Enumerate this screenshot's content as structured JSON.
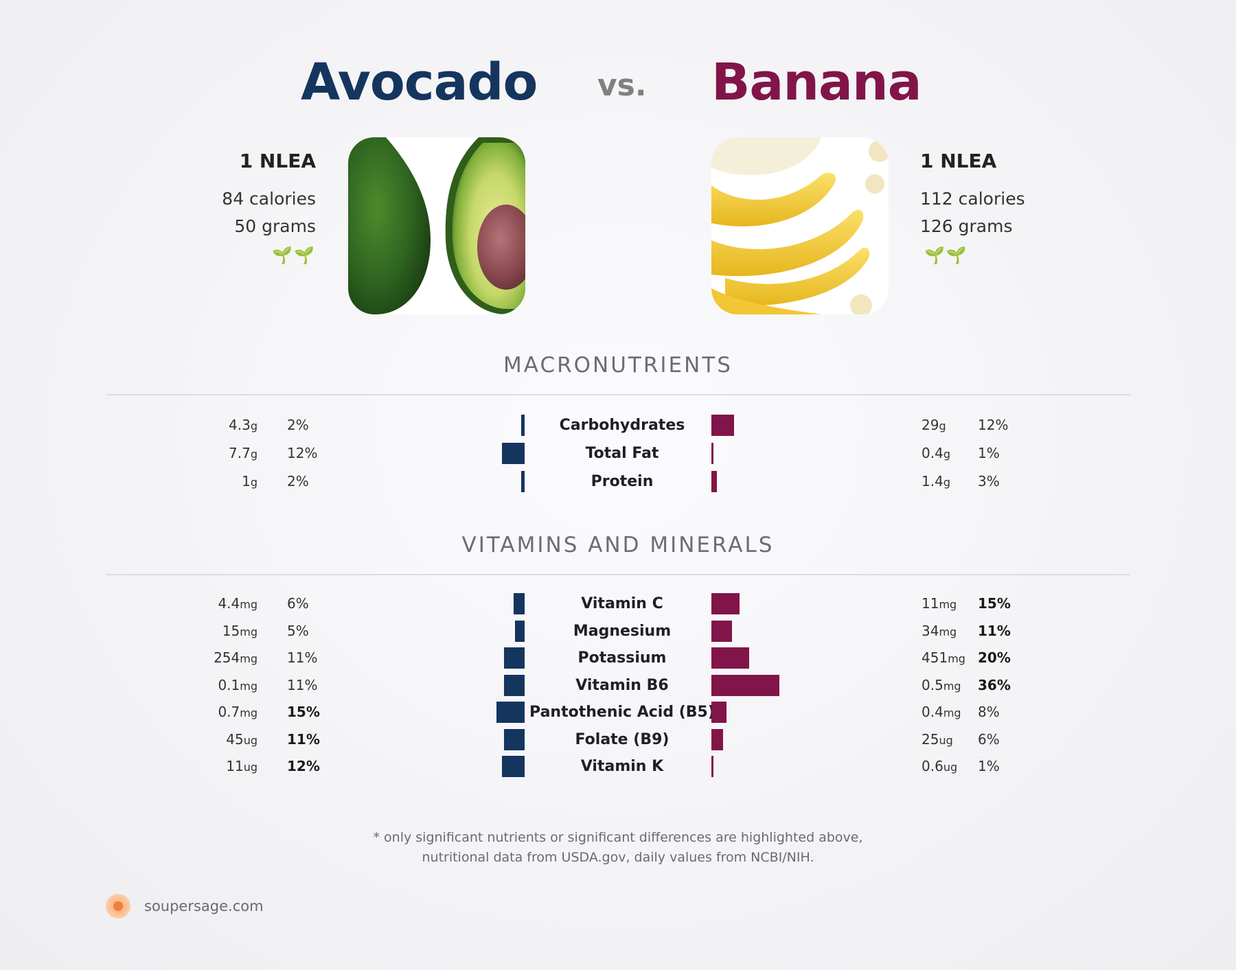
{
  "header": {
    "food_a": "Avocado",
    "vs": "vs.",
    "food_b": "Banana"
  },
  "food_a": {
    "serving": "1 NLEA",
    "calories": "84 calories",
    "grams": "50 grams",
    "badge": "🌱🌱",
    "color": "#14355e"
  },
  "food_b": {
    "serving": "1 NLEA",
    "calories": "112 calories",
    "grams": "126 grams",
    "badge": "🌱🌱",
    "color": "#81154a"
  },
  "sections": {
    "macros_title": "MACRONUTRIENTS",
    "vitamins_title": "VITAMINS AND MINERALS"
  },
  "chart_data": [
    {
      "type": "bar",
      "title": "MACRONUTRIENTS",
      "categories": [
        "Carbohydrates",
        "Total Fat",
        "Protein"
      ],
      "series": [
        {
          "name": "Avocado",
          "amounts": [
            "4.3",
            "7.7",
            "1"
          ],
          "units": [
            "g",
            "g",
            "g"
          ],
          "values": [
            2,
            12,
            2
          ],
          "percent_labels": [
            "2%",
            "12%",
            "2%"
          ],
          "bold": [
            false,
            false,
            false
          ]
        },
        {
          "name": "Banana",
          "amounts": [
            "29",
            "0.4",
            "1.4"
          ],
          "units": [
            "g",
            "g",
            "g"
          ],
          "values": [
            12,
            1,
            3
          ],
          "percent_labels": [
            "12%",
            "1%",
            "3%"
          ],
          "bold": [
            false,
            false,
            false
          ]
        }
      ]
    },
    {
      "type": "bar",
      "title": "VITAMINS AND MINERALS",
      "categories": [
        "Vitamin C",
        "Magnesium",
        "Potassium",
        "Vitamin B6",
        "Pantothenic Acid (B5)",
        "Folate (B9)",
        "Vitamin K"
      ],
      "series": [
        {
          "name": "Avocado",
          "amounts": [
            "4.4",
            "15",
            "254",
            "0.1",
            "0.7",
            "45",
            "11"
          ],
          "units": [
            "mg",
            "mg",
            "mg",
            "mg",
            "mg",
            "ug",
            "ug"
          ],
          "values": [
            6,
            5,
            11,
            11,
            15,
            11,
            12
          ],
          "percent_labels": [
            "6%",
            "5%",
            "11%",
            "11%",
            "15%",
            "11%",
            "12%"
          ],
          "bold": [
            false,
            false,
            false,
            false,
            true,
            true,
            true
          ]
        },
        {
          "name": "Banana",
          "amounts": [
            "11",
            "34",
            "451",
            "0.5",
            "0.4",
            "25",
            "0.6"
          ],
          "units": [
            "mg",
            "mg",
            "mg",
            "mg",
            "mg",
            "ug",
            "ug"
          ],
          "values": [
            15,
            11,
            20,
            36,
            8,
            6,
            1
          ],
          "percent_labels": [
            "15%",
            "11%",
            "20%",
            "36%",
            "8%",
            "6%",
            "1%"
          ],
          "bold": [
            true,
            true,
            true,
            true,
            false,
            false,
            false
          ]
        }
      ]
    }
  ],
  "footer": {
    "note_line1": "* only significant nutrients or significant differences are highlighted above,",
    "note_line2": "nutritional data from USDA.gov, daily values from NCBI/NIH.",
    "brand": "soupersage.com"
  }
}
